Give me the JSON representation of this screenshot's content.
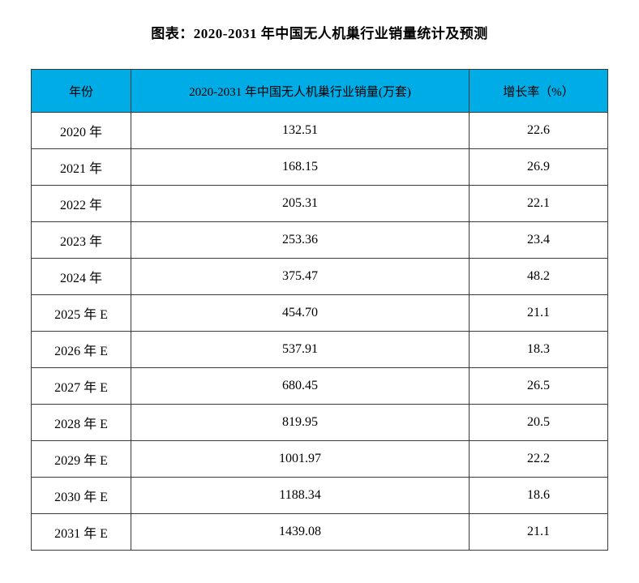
{
  "title": "图表：2020-2031 年中国无人机巢行业销量统计及预测",
  "table": {
    "header_bg_color": "#00ACE6",
    "border_color": "#3a3a3a",
    "columns": [
      "年份",
      "2020-2031 年中国无人机巢行业销量(万套)",
      "增长率（%）"
    ],
    "rows": [
      {
        "year": "2020 年",
        "sales": "132.51",
        "growth": "22.6"
      },
      {
        "year": "2021 年",
        "sales": "168.15",
        "growth": "26.9"
      },
      {
        "year": "2022 年",
        "sales": "205.31",
        "growth": "22.1"
      },
      {
        "year": "2023 年",
        "sales": "253.36",
        "growth": "23.4"
      },
      {
        "year": "2024 年",
        "sales": "375.47",
        "growth": "48.2"
      },
      {
        "year": "2025 年 E",
        "sales": "454.70",
        "growth": "21.1"
      },
      {
        "year": "2026 年 E",
        "sales": "537.91",
        "growth": "18.3"
      },
      {
        "year": "2027 年 E",
        "sales": "680.45",
        "growth": "26.5"
      },
      {
        "year": "2028 年 E",
        "sales": "819.95",
        "growth": "20.5"
      },
      {
        "year": "2029 年 E",
        "sales": "1001.97",
        "growth": "22.2"
      },
      {
        "year": "2030 年 E",
        "sales": "1188.34",
        "growth": "18.6"
      },
      {
        "year": "2031 年 E",
        "sales": "1439.08",
        "growth": "21.1"
      }
    ]
  },
  "chart_data": {
    "type": "table",
    "title": "图表：2020-2031 年中国无人机巢行业销量统计及预测",
    "columns": [
      "年份",
      "2020-2031 年中国无人机巢行业销量(万套)",
      "增长率（%）"
    ],
    "categories": [
      "2020",
      "2021",
      "2022",
      "2023",
      "2024",
      "2025E",
      "2026E",
      "2027E",
      "2028E",
      "2029E",
      "2030E",
      "2031E"
    ],
    "series": [
      {
        "name": "销量(万套)",
        "values": [
          132.51,
          168.15,
          205.31,
          253.36,
          375.47,
          454.7,
          537.91,
          680.45,
          819.95,
          1001.97,
          1188.34,
          1439.08
        ]
      },
      {
        "name": "增长率(%)",
        "values": [
          22.6,
          26.9,
          22.1,
          23.4,
          48.2,
          21.1,
          18.3,
          26.5,
          20.5,
          22.2,
          18.6,
          21.1
        ]
      }
    ]
  }
}
